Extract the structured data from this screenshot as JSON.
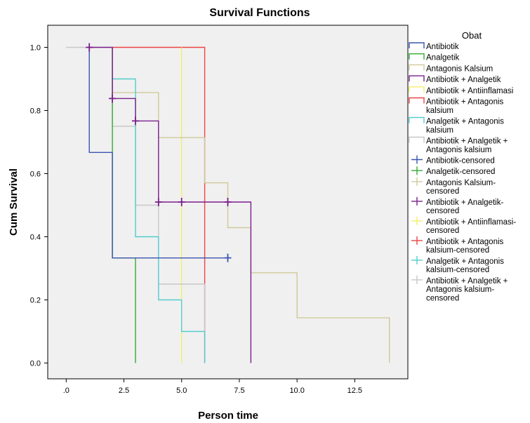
{
  "chart_data": {
    "type": "line",
    "title": "Survival Functions",
    "xlabel": "Person time",
    "ylabel": "Cum Survival",
    "xlim": [
      -0.8,
      14.8
    ],
    "ylim": [
      -0.05,
      1.07
    ],
    "x_ticks": [
      0,
      2.5,
      5,
      7.5,
      10,
      12.5
    ],
    "x_tick_labels": [
      ".0",
      "2.5",
      "5.0",
      "7.5",
      "10.0",
      "12.5"
    ],
    "y_ticks": [
      0,
      0.2,
      0.4,
      0.6,
      0.8,
      1.0
    ],
    "y_tick_labels": [
      "0.0",
      "0.2",
      "0.4",
      "0.6",
      "0.8",
      "1.0"
    ],
    "grid": false,
    "background_color": "#f0f0f0",
    "legend": {
      "title": "Obat",
      "position": "right",
      "entries": [
        {
          "label": "Antibiotik",
          "kind": "line",
          "color": "#3a55b0"
        },
        {
          "label": "Analgetik",
          "kind": "line",
          "color": "#33aa33"
        },
        {
          "label": "Antagonis Kalsium",
          "kind": "line",
          "color": "#cfc99a"
        },
        {
          "label": "Antibiotik + Analgetik",
          "kind": "line",
          "color": "#7a1e8c"
        },
        {
          "label": "Antibiotik + Antiinflamasi",
          "kind": "line",
          "color": "#f2f06a"
        },
        {
          "label": "Antibiotik + Antagonis\nkalsium",
          "kind": "line",
          "color": "#ee4444"
        },
        {
          "label": "Analgetik + Antagonis\nkalsium",
          "kind": "line",
          "color": "#55cccc"
        },
        {
          "label": "Antibiotik + Analgetik +\nAntagonis kalsium",
          "kind": "line",
          "color": "#c8c8c8"
        },
        {
          "label": "Antibiotik-censored",
          "kind": "censor",
          "color": "#3a55b0"
        },
        {
          "label": "Analgetik-censored",
          "kind": "censor",
          "color": "#33aa33"
        },
        {
          "label": "Antagonis Kalsium-\ncensored",
          "kind": "censor",
          "color": "#cfc99a"
        },
        {
          "label": "Antibiotik + Analgetik-\ncensored",
          "kind": "censor",
          "color": "#7a1e8c"
        },
        {
          "label": "Antibiotik + Antiinflamasi-\ncensored",
          "kind": "censor",
          "color": "#f2f06a"
        },
        {
          "label": "Antibiotik + Antagonis\nkalsium-censored",
          "kind": "censor",
          "color": "#ee4444"
        },
        {
          "label": "Analgetik + Antagonis\nkalsium-censored",
          "kind": "censor",
          "color": "#55cccc"
        },
        {
          "label": "Antibiotik + Analgetik +\nAntagonis kalsium-\ncensored",
          "kind": "censor",
          "color": "#c8c8c8"
        }
      ]
    },
    "series": [
      {
        "name": "Antibiotik + Antagonis kalsium",
        "color": "#ee4444",
        "x": [
          2,
          6,
          6
        ],
        "y": [
          1.0,
          1.0,
          0.0
        ]
      },
      {
        "name": "Antibiotik + Antiinflamasi",
        "color": "#f2f06a",
        "x": [
          5,
          5
        ],
        "y": [
          1.0,
          0.0
        ]
      },
      {
        "name": "Antagonis Kalsium",
        "color": "#cfc99a",
        "x": [
          2,
          2,
          4,
          4,
          6,
          6,
          7,
          7,
          8,
          8,
          10,
          10,
          14,
          14
        ],
        "y": [
          1.0,
          0.857,
          0.857,
          0.714,
          0.714,
          0.571,
          0.571,
          0.429,
          0.429,
          0.286,
          0.286,
          0.143,
          0.143,
          0.0
        ]
      },
      {
        "name": "Antibiotik + Analgetik + Antagonis kalsium",
        "color": "#c8c8c8",
        "x": [
          0,
          2,
          2,
          3,
          3,
          4,
          4,
          6,
          6
        ],
        "y": [
          1.0,
          1.0,
          0.75,
          0.75,
          0.5,
          0.5,
          0.25,
          0.25,
          0.0
        ]
      },
      {
        "name": "Analgetik + Antagonis kalsium",
        "color": "#55cccc",
        "x": [
          2,
          3,
          3,
          4,
          4,
          5,
          5,
          6,
          6
        ],
        "y": [
          0.9,
          0.9,
          0.4,
          0.4,
          0.2,
          0.2,
          0.1,
          0.1,
          0.0
        ]
      },
      {
        "name": "Analgetik",
        "color": "#33aa33",
        "x": [
          2,
          2,
          3,
          3
        ],
        "y": [
          1.0,
          0.333,
          0.333,
          0.0
        ]
      },
      {
        "name": "Antibiotik",
        "color": "#3a55b0",
        "x": [
          1,
          1,
          2,
          2,
          7
        ],
        "y": [
          1.0,
          0.667,
          0.667,
          0.333,
          0.333
        ]
      },
      {
        "name": "Antibiotik + Analgetik",
        "color": "#7a1e8c",
        "x": [
          1,
          2,
          2,
          3,
          3,
          4,
          4,
          8,
          8
        ],
        "y": [
          1.0,
          1.0,
          0.838,
          0.838,
          0.767,
          0.767,
          0.51,
          0.51,
          0.0
        ]
      }
    ],
    "censored": [
      {
        "name": "Antibiotik-censored",
        "color": "#3a55b0",
        "points": [
          [
            7,
            0.333
          ]
        ]
      },
      {
        "name": "Antibiotik + Analgetik-censored",
        "color": "#7a1e8c",
        "points": [
          [
            1,
            1.0
          ],
          [
            2,
            0.838
          ],
          [
            3,
            0.767
          ],
          [
            4,
            0.51
          ],
          [
            5,
            0.51
          ],
          [
            7,
            0.51
          ]
        ]
      }
    ]
  }
}
